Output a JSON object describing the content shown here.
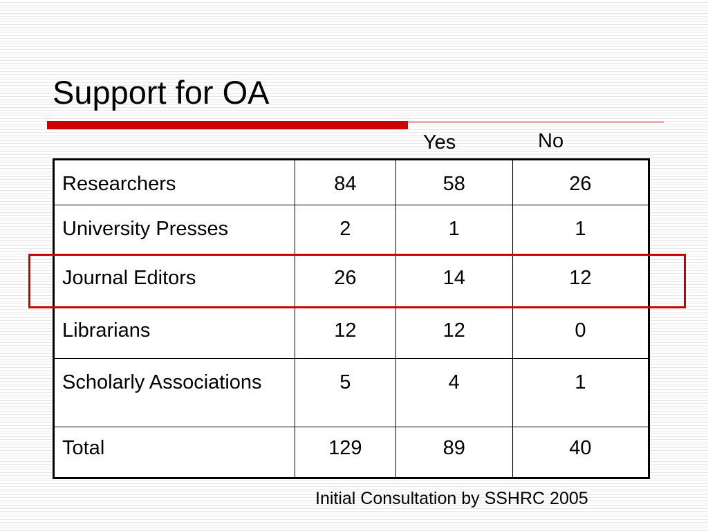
{
  "slide": {
    "title": "Support for OA",
    "source": "Initial Consultation by SSHRC 2005",
    "accent_color": "#cc0000"
  },
  "table": {
    "column_headers": {
      "yes": "Yes",
      "no": "No"
    },
    "rows": [
      {
        "label": "Researchers",
        "total": "84",
        "yes": "58",
        "no": "26"
      },
      {
        "label": "University Presses",
        "total": "2",
        "yes": "1",
        "no": "1"
      },
      {
        "label": "Journal Editors",
        "total": "26",
        "yes": "14",
        "no": "12",
        "highlighted": true
      },
      {
        "label": "Librarians",
        "total": "12",
        "yes": "12",
        "no": "0"
      },
      {
        "label": "Scholarly Associations",
        "total": "5",
        "yes": "4",
        "no": "1"
      },
      {
        "label": "Total",
        "total": "129",
        "yes": "89",
        "no": "40"
      }
    ]
  }
}
